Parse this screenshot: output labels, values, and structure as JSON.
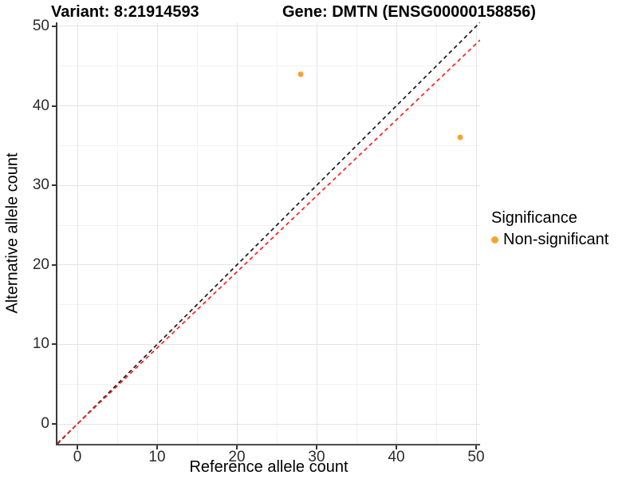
{
  "titles": {
    "variant": "Variant: 8:21914593",
    "gene": "Gene: DMTN (ENSG00000158856)"
  },
  "legend": {
    "title": "Significance",
    "items": [
      {
        "label": "Non-significant",
        "color": "#f9a331"
      }
    ]
  },
  "chart_data": {
    "type": "scatter",
    "title": "Variant: 8:21914593 — Gene: DMTN (ENSG00000158856)",
    "xlabel": "Reference allele count",
    "ylabel": "Alternative allele count",
    "xlim": [
      -2.5,
      50.5
    ],
    "ylim": [
      -2.5,
      50.5
    ],
    "x_ticks": [
      0,
      10,
      20,
      30,
      40,
      50
    ],
    "y_ticks": [
      0,
      10,
      20,
      30,
      40,
      50
    ],
    "x_minor_ticks": [
      5,
      15,
      25,
      35,
      45
    ],
    "y_minor_ticks": [
      5,
      15,
      25,
      35,
      45
    ],
    "grid": true,
    "legend_position": "right",
    "series": [
      {
        "name": "Non-significant",
        "color": "#f9a331",
        "points": [
          [
            28,
            44
          ],
          [
            48,
            36
          ]
        ]
      }
    ],
    "reference_lines": [
      {
        "name": "identity",
        "slope": 1.0,
        "intercept": 0,
        "color": "#1a1a1a",
        "style": "dashed"
      },
      {
        "name": "expected-allelic-ratio",
        "slope": 0.956,
        "intercept": 0,
        "color": "#ff1f1f",
        "style": "dashed"
      }
    ]
  }
}
